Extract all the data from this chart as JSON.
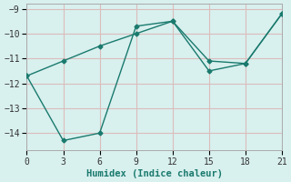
{
  "line1_x": [
    0,
    3,
    6,
    9,
    12,
    15,
    18,
    21
  ],
  "line1_y": [
    -11.7,
    -11.1,
    -10.5,
    -10.0,
    -9.5,
    -11.1,
    -11.2,
    -9.2
  ],
  "line2_x": [
    0,
    3,
    6,
    9,
    12,
    15,
    18,
    21
  ],
  "line2_y": [
    -11.7,
    -14.3,
    -14.0,
    -9.7,
    -9.5,
    -11.5,
    -11.2,
    -9.2
  ],
  "line_color": "#1a7a6e",
  "bg_color": "#d8f0ee",
  "grid_color": "#dbbcbc",
  "xlabel": "Humidex (Indice chaleur)",
  "xlim": [
    0,
    21
  ],
  "ylim": [
    -14.7,
    -8.8
  ],
  "xticks": [
    0,
    3,
    6,
    9,
    12,
    15,
    18,
    21
  ],
  "yticks": [
    -9,
    -10,
    -11,
    -12,
    -13,
    -14
  ],
  "xlabel_fontsize": 7.5,
  "tick_fontsize": 7,
  "marker": "D",
  "markersize": 2.5,
  "linewidth": 1.0
}
